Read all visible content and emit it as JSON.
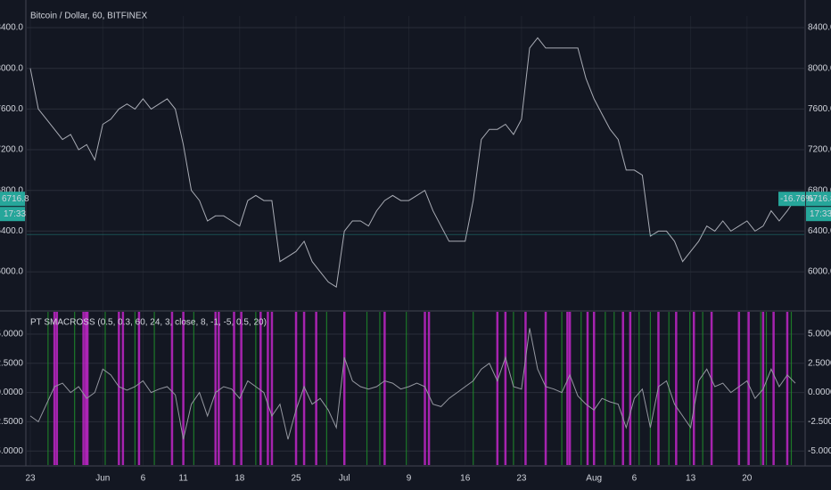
{
  "chart_data": [
    {
      "type": "line",
      "title": "Bitcoin / Dollar, 60, BITFINEX",
      "color": "#a9acb5",
      "categories": [
        "23",
        null,
        null,
        null,
        null,
        null,
        null,
        null,
        null,
        "Jun",
        null,
        null,
        null,
        null,
        "6",
        null,
        null,
        null,
        null,
        "11",
        null,
        null,
        null,
        null,
        null,
        null,
        "18",
        null,
        null,
        null,
        null,
        null,
        null,
        "25",
        null,
        null,
        null,
        null,
        null,
        "Jul",
        null,
        null,
        null,
        null,
        null,
        null,
        null,
        "9",
        null,
        null,
        null,
        null,
        null,
        null,
        "16",
        null,
        null,
        null,
        null,
        null,
        null,
        "23",
        null,
        null,
        null,
        null,
        null,
        null,
        null,
        null,
        "Aug",
        null,
        null,
        null,
        null,
        "6",
        null,
        null,
        null,
        null,
        null,
        null,
        "13",
        null,
        null,
        null,
        null,
        null,
        null,
        "20",
        null,
        null,
        null,
        null,
        null,
        null
      ],
      "values": [
        8000,
        7600,
        7500,
        7400,
        7300,
        7350,
        7200,
        7250,
        7100,
        7450,
        7500,
        7600,
        7650,
        7600,
        7700,
        7600,
        7650,
        7700,
        7600,
        7250,
        6800,
        6700,
        6500,
        6550,
        6550,
        6500,
        6450,
        6700,
        6750,
        6700,
        6700,
        6100,
        6150,
        6200,
        6300,
        6100,
        6000,
        5900,
        5850,
        6400,
        6500,
        6500,
        6450,
        6600,
        6700,
        6750,
        6700,
        6700,
        6750,
        6800,
        6600,
        6450,
        6300,
        6300,
        6300,
        6700,
        7300,
        7400,
        7400,
        7450,
        7350,
        7500,
        8200,
        8300,
        8200,
        8200,
        8200,
        8200,
        8200,
        7900,
        7700,
        7550,
        7400,
        7300,
        7000,
        7000,
        6950,
        6350,
        6400,
        6400,
        6300,
        6100,
        6200,
        6300,
        6450,
        6400,
        6500,
        6400,
        6450,
        6500,
        6400,
        6450,
        6600,
        6500,
        6600,
        6716.8
      ],
      "ylim": [
        5624,
        8514
      ],
      "yticks": [
        {
          "value": 6000,
          "label": "6000.0"
        },
        {
          "value": 6400,
          "label": "6400.0"
        },
        {
          "value": 6800,
          "label": "6800.0"
        },
        {
          "value": 7200,
          "label": "7200.0"
        },
        {
          "value": 7600,
          "label": "7600.0"
        },
        {
          "value": 8000,
          "label": "8000.0"
        },
        {
          "value": 8400,
          "label": "8400.0"
        }
      ],
      "grid": true,
      "change_label": "-16.76%",
      "time_label": "17:33",
      "label_color": "#26a69a"
    },
    {
      "type": "line",
      "title": "PT SMACROSS (0.5, 0.3, 60, 24, 3, close, 8, -1, -5, 0.5, 20)",
      "color": "#9598a1",
      "values": [
        -2,
        -2.5,
        -1,
        0.5,
        0.8,
        0,
        0.5,
        -0.5,
        0,
        2,
        1.5,
        0.5,
        0.2,
        0.5,
        1,
        0,
        0.3,
        0.5,
        -0.2,
        -4,
        -1,
        0,
        -2,
        0,
        0.5,
        0.3,
        -0.5,
        1,
        0.5,
        0,
        -2,
        -1,
        -4,
        -1.5,
        0.5,
        -1,
        -0.5,
        -1.5,
        -3,
        3,
        1,
        0.5,
        0.3,
        0.5,
        1,
        0.8,
        0.3,
        0.5,
        0.8,
        0.5,
        -1,
        -1.2,
        -0.5,
        0,
        0.5,
        1,
        2,
        2.5,
        1,
        3,
        0.5,
        0.3,
        5.5,
        2,
        0.5,
        0.3,
        0,
        1.5,
        -0.3,
        -1,
        -1.5,
        -0.5,
        -0.8,
        -1,
        -3,
        -0.5,
        0.3,
        -3,
        0.5,
        1,
        -1,
        -2,
        -3,
        1,
        2,
        0.5,
        0.8,
        0,
        0.5,
        1,
        -0.5,
        0.3,
        2,
        0.5,
        1.5,
        0.8
      ],
      "ylim": [
        -6.2,
        6.9
      ],
      "yticks": [
        {
          "value": -5,
          "label": "-5.0000"
        },
        {
          "value": -2.5,
          "label": "-2.5000"
        },
        {
          "value": 0,
          "label": "0.0000"
        },
        {
          "value": 2.5,
          "label": "2.5000"
        },
        {
          "value": 5,
          "label": "5.0000"
        }
      ],
      "grid": true,
      "sell_signals": {
        "color": "#c026c8",
        "x": [
          3,
          3.3,
          6.6,
          6.9,
          7.1,
          11,
          11.5,
          13.5,
          17.6,
          19,
          23,
          23.4,
          25.3,
          26.2,
          28.6,
          29.5,
          30,
          33,
          34,
          35.5,
          39,
          44,
          49,
          49.5,
          58,
          59,
          61.5,
          64,
          66.7,
          67,
          69.2,
          70,
          73.6,
          74.5,
          78,
          80.2,
          82.4,
          84.6,
          88,
          89.2,
          91,
          92.3,
          94
        ]
      },
      "buy_signals": {
        "color": "#1e8a2a",
        "x": [
          2.2,
          5.5,
          9.3,
          13,
          15.4,
          20.3,
          28,
          36.8,
          41.8,
          43.4,
          46.7,
          55,
          60,
          66,
          68.4,
          71.4,
          72.5,
          75.6,
          77,
          79.3,
          81.9,
          83.5,
          90.7,
          91.4,
          94.5
        ]
      }
    }
  ]
}
